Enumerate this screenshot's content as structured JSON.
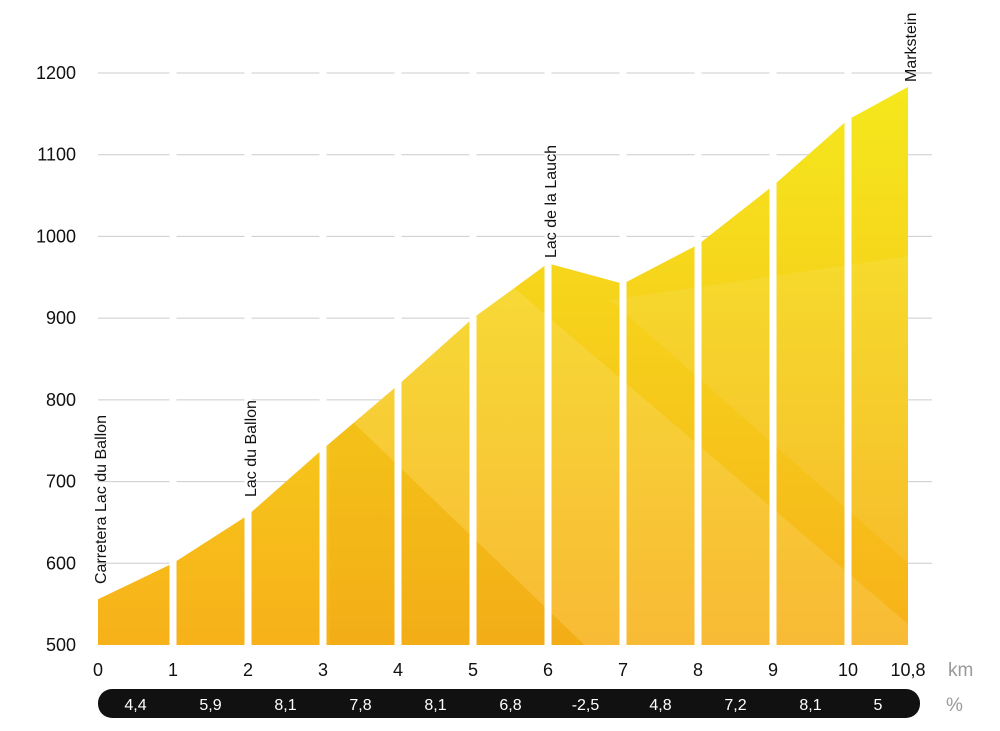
{
  "chart_data": {
    "type": "area",
    "title": "",
    "xlabel": "km",
    "ylabel": "",
    "x_unit": "km",
    "grade_unit": "%",
    "ylim": [
      500,
      1200
    ],
    "yticks": [
      "500",
      "600",
      "700",
      "800",
      "900",
      "1000",
      "1100",
      "1200"
    ],
    "x": [
      0,
      1,
      2,
      3,
      4,
      5,
      6,
      7,
      8,
      9,
      10,
      10.8
    ],
    "xtick_labels": [
      "0",
      "1",
      "2",
      "3",
      "4",
      "5",
      "6",
      "7",
      "8",
      "9",
      "10",
      "10,8"
    ],
    "elevation": [
      556,
      600,
      659,
      740,
      818,
      900,
      967,
      942,
      990,
      1062,
      1143,
      1183
    ],
    "grades": [
      "4,4",
      "5,9",
      "8,1",
      "7,8",
      "8,1",
      "6,8",
      "-2,5",
      "4,8",
      "7,2",
      "8,1",
      "5"
    ],
    "grade_values": [
      4.4,
      5.9,
      8.1,
      7.8,
      8.1,
      6.8,
      -2.5,
      4.8,
      7.2,
      8.1,
      5
    ],
    "annotations": [
      {
        "label": "Carretera Lac du Ballon",
        "x": 0
      },
      {
        "label": "Lac du Ballon",
        "x": 2
      },
      {
        "label": "Lac de la Lauch",
        "x": 6
      },
      {
        "label": "Markstein",
        "x": 10.8
      }
    ]
  },
  "colors": {
    "bottom": "#f7b11a",
    "top": "#f5e81c",
    "grid": "#cccccc",
    "bar": "#111111"
  }
}
